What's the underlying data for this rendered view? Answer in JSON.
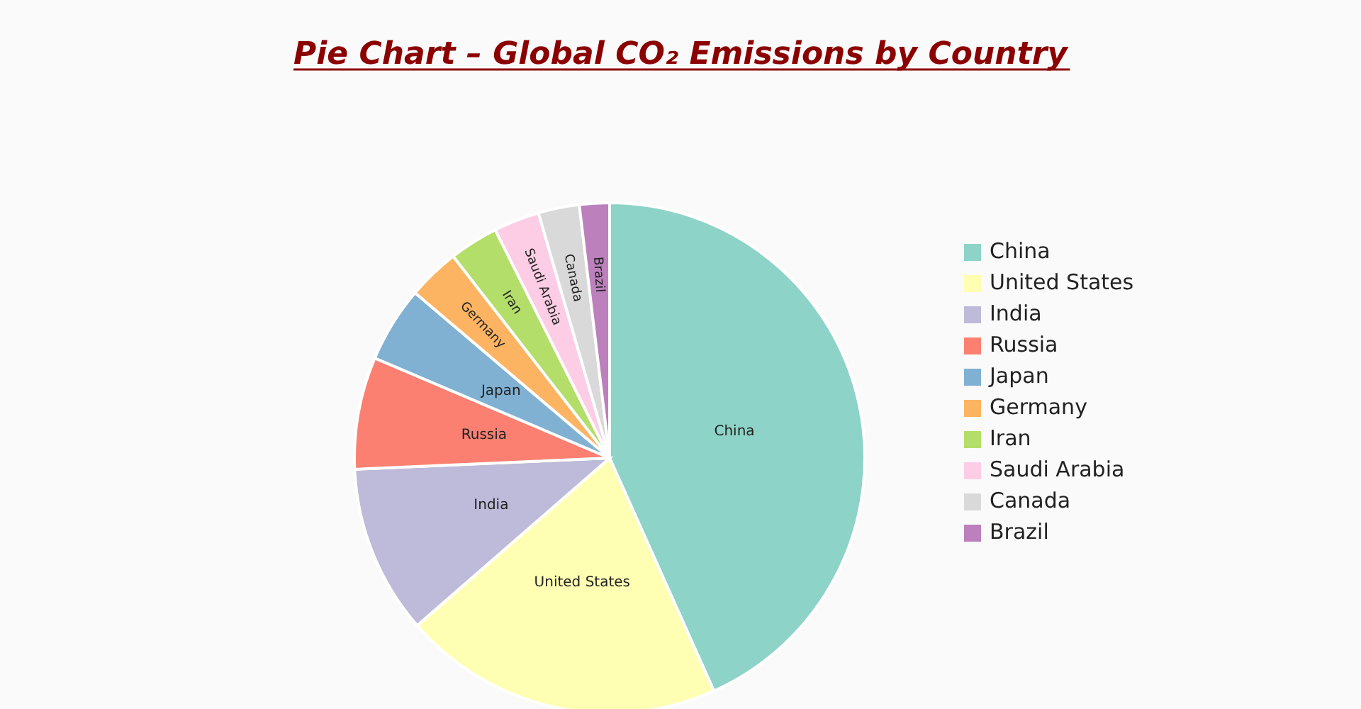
{
  "chart_data": {
    "type": "pie",
    "title": "Pie Chart – Global CO₂ Emissions by Country",
    "categories": [
      "China",
      "United States",
      "India",
      "Russia",
      "Japan",
      "Germany",
      "Iran",
      "Saudi Arabia",
      "Canada",
      "Brazil"
    ],
    "values": [
      43.3,
      20.3,
      10.7,
      7.1,
      4.8,
      3.3,
      3.1,
      2.9,
      2.6,
      1.9
    ],
    "colors": [
      "#8dd3c7",
      "#ffffb3",
      "#bebada",
      "#fb8072",
      "#80b1d3",
      "#fdb462",
      "#b3de69",
      "#fccde5",
      "#d9d9d9",
      "#bc80bd"
    ],
    "legend": "right"
  }
}
